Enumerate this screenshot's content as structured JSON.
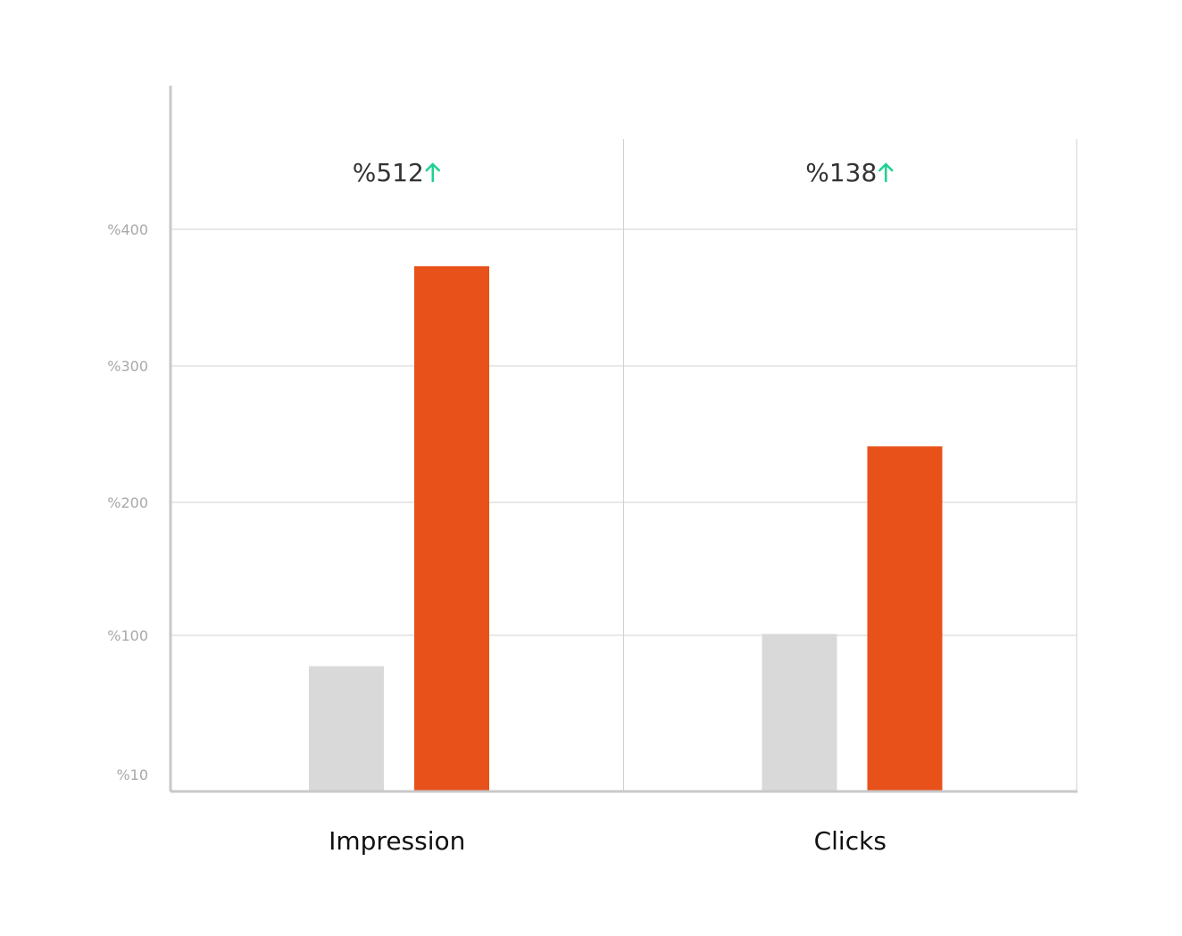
{
  "chart_data": {
    "type": "bar",
    "title": "",
    "xlabel": "",
    "ylabel": "",
    "categories": [
      "Impression",
      "Clicks"
    ],
    "changes": [
      {
        "label": "%512",
        "direction": "up",
        "icon": "arrow-up-icon"
      },
      {
        "label": "%138",
        "direction": "up",
        "icon": "arrow-up-icon"
      }
    ],
    "y_ticks": [
      {
        "value": 10,
        "label": "%10"
      },
      {
        "value": 100,
        "label": "%100"
      },
      {
        "value": 200,
        "label": "%200"
      },
      {
        "value": 300,
        "label": "%300"
      },
      {
        "value": 400,
        "label": "%400"
      }
    ],
    "series": [
      {
        "color": "#d9d9d9",
        "values": [
          80,
          101
        ]
      },
      {
        "color": "#e8511a",
        "values": [
          373,
          241
        ]
      }
    ],
    "grid": true,
    "legend": "none",
    "colors": {
      "up_arrow": "#1ed190",
      "axis": "#c8c8c8",
      "grid": "#d0d0d0"
    }
  }
}
